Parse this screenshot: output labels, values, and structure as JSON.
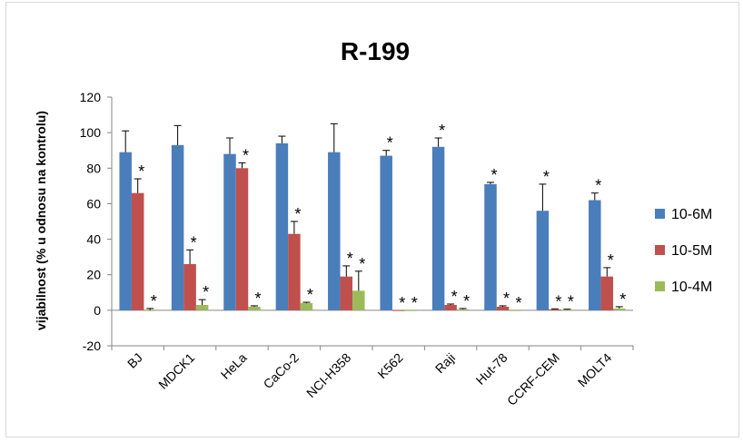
{
  "chart_data": {
    "type": "bar",
    "title": "R-199",
    "ylabel": "vijabilnost (% u odnosu na kontrolu)",
    "xlabel": "",
    "ylim": [
      -20,
      120
    ],
    "yticks": [
      -20,
      0,
      20,
      40,
      60,
      80,
      100,
      120
    ],
    "grid": false,
    "legend_position": "right",
    "categories": [
      "BJ",
      "MDCK1",
      "HeLa",
      "CaCo-2",
      "NCI-H358",
      "K562",
      "Raji",
      "Hut-78",
      "CCRF-CEM",
      "MOLT4"
    ],
    "series": [
      {
        "name": "10-6M",
        "color": "#4a7ebb",
        "values": [
          89,
          93,
          88,
          94,
          89,
          87,
          92,
          71,
          56,
          62
        ],
        "errors": [
          12,
          11,
          9,
          4,
          16,
          3,
          5,
          1,
          15,
          4
        ],
        "significant": [
          false,
          false,
          false,
          false,
          false,
          true,
          true,
          true,
          true,
          true
        ]
      },
      {
        "name": "10-5M",
        "color": "#c0504d",
        "values": [
          66,
          26,
          80,
          43,
          19,
          0,
          3,
          2,
          0.5,
          19
        ],
        "errors": [
          8,
          8,
          3,
          7,
          6,
          0,
          0.5,
          0.5,
          0.3,
          5
        ],
        "significant": [
          true,
          true,
          true,
          true,
          true,
          true,
          true,
          true,
          true,
          true
        ]
      },
      {
        "name": "10-4M",
        "color": "#9bbb59",
        "values": [
          0,
          3,
          2,
          4,
          11,
          0,
          0.5,
          0,
          0.3,
          1
        ],
        "errors": [
          1,
          3,
          0.5,
          0.5,
          11,
          0,
          0.5,
          0,
          0.3,
          1
        ],
        "significant": [
          true,
          true,
          true,
          true,
          true,
          true,
          true,
          true,
          true,
          true
        ]
      }
    ],
    "significance_marker": "*"
  }
}
